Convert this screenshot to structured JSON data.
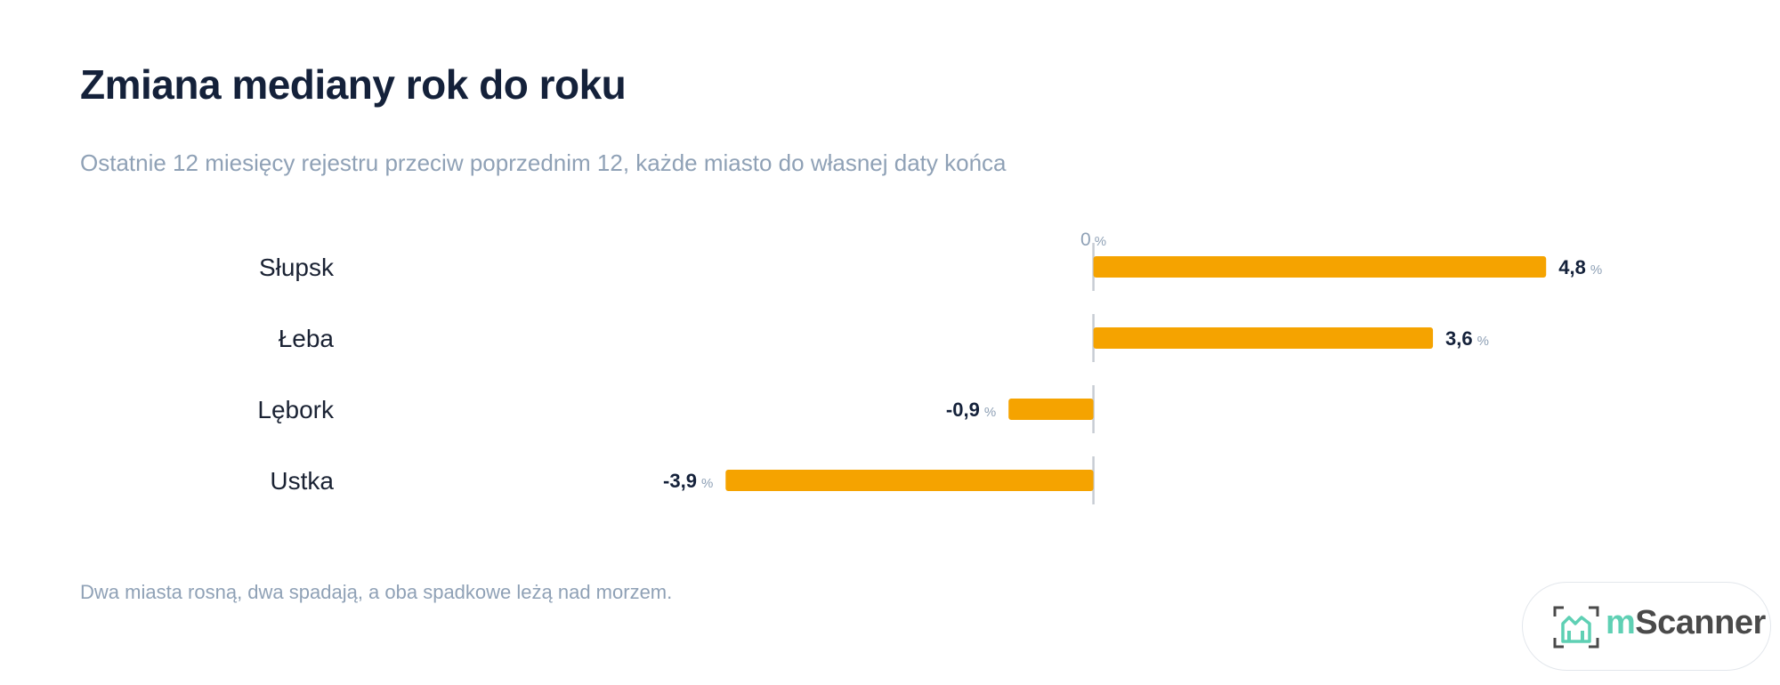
{
  "header": {
    "title": "Zmiana mediany rok do roku",
    "subtitle": "Ostatnie 12 miesięcy rejestru przeciw poprzednim 12, każde miasto do własnej daty końca"
  },
  "footer": {
    "note": "Dwa miasta rosną, dwa spadają, a oba spadkowe leżą nad morzem."
  },
  "logo": {
    "text_accent": "m",
    "text_rest": "Scanner",
    "icon": "house-frame-icon"
  },
  "colors": {
    "bar": "#f5a300",
    "axis": "#c7ccd3",
    "title": "#14213a",
    "muted": "#8fa1b6",
    "logo_accent": "#5fd0b4"
  },
  "chart_data": {
    "type": "bar",
    "orientation": "horizontal",
    "categories": [
      "Słupsk",
      "Łeba",
      "Lębork",
      "Ustka"
    ],
    "values": [
      4.8,
      3.6,
      -0.9,
      -3.9
    ],
    "value_labels": [
      "4,8",
      "3,6",
      "-0,9",
      "-3,9"
    ],
    "unit": "%",
    "zero_label": "0",
    "xlim": [
      -7.8,
      5.6
    ],
    "grid": false,
    "legend": "none"
  }
}
